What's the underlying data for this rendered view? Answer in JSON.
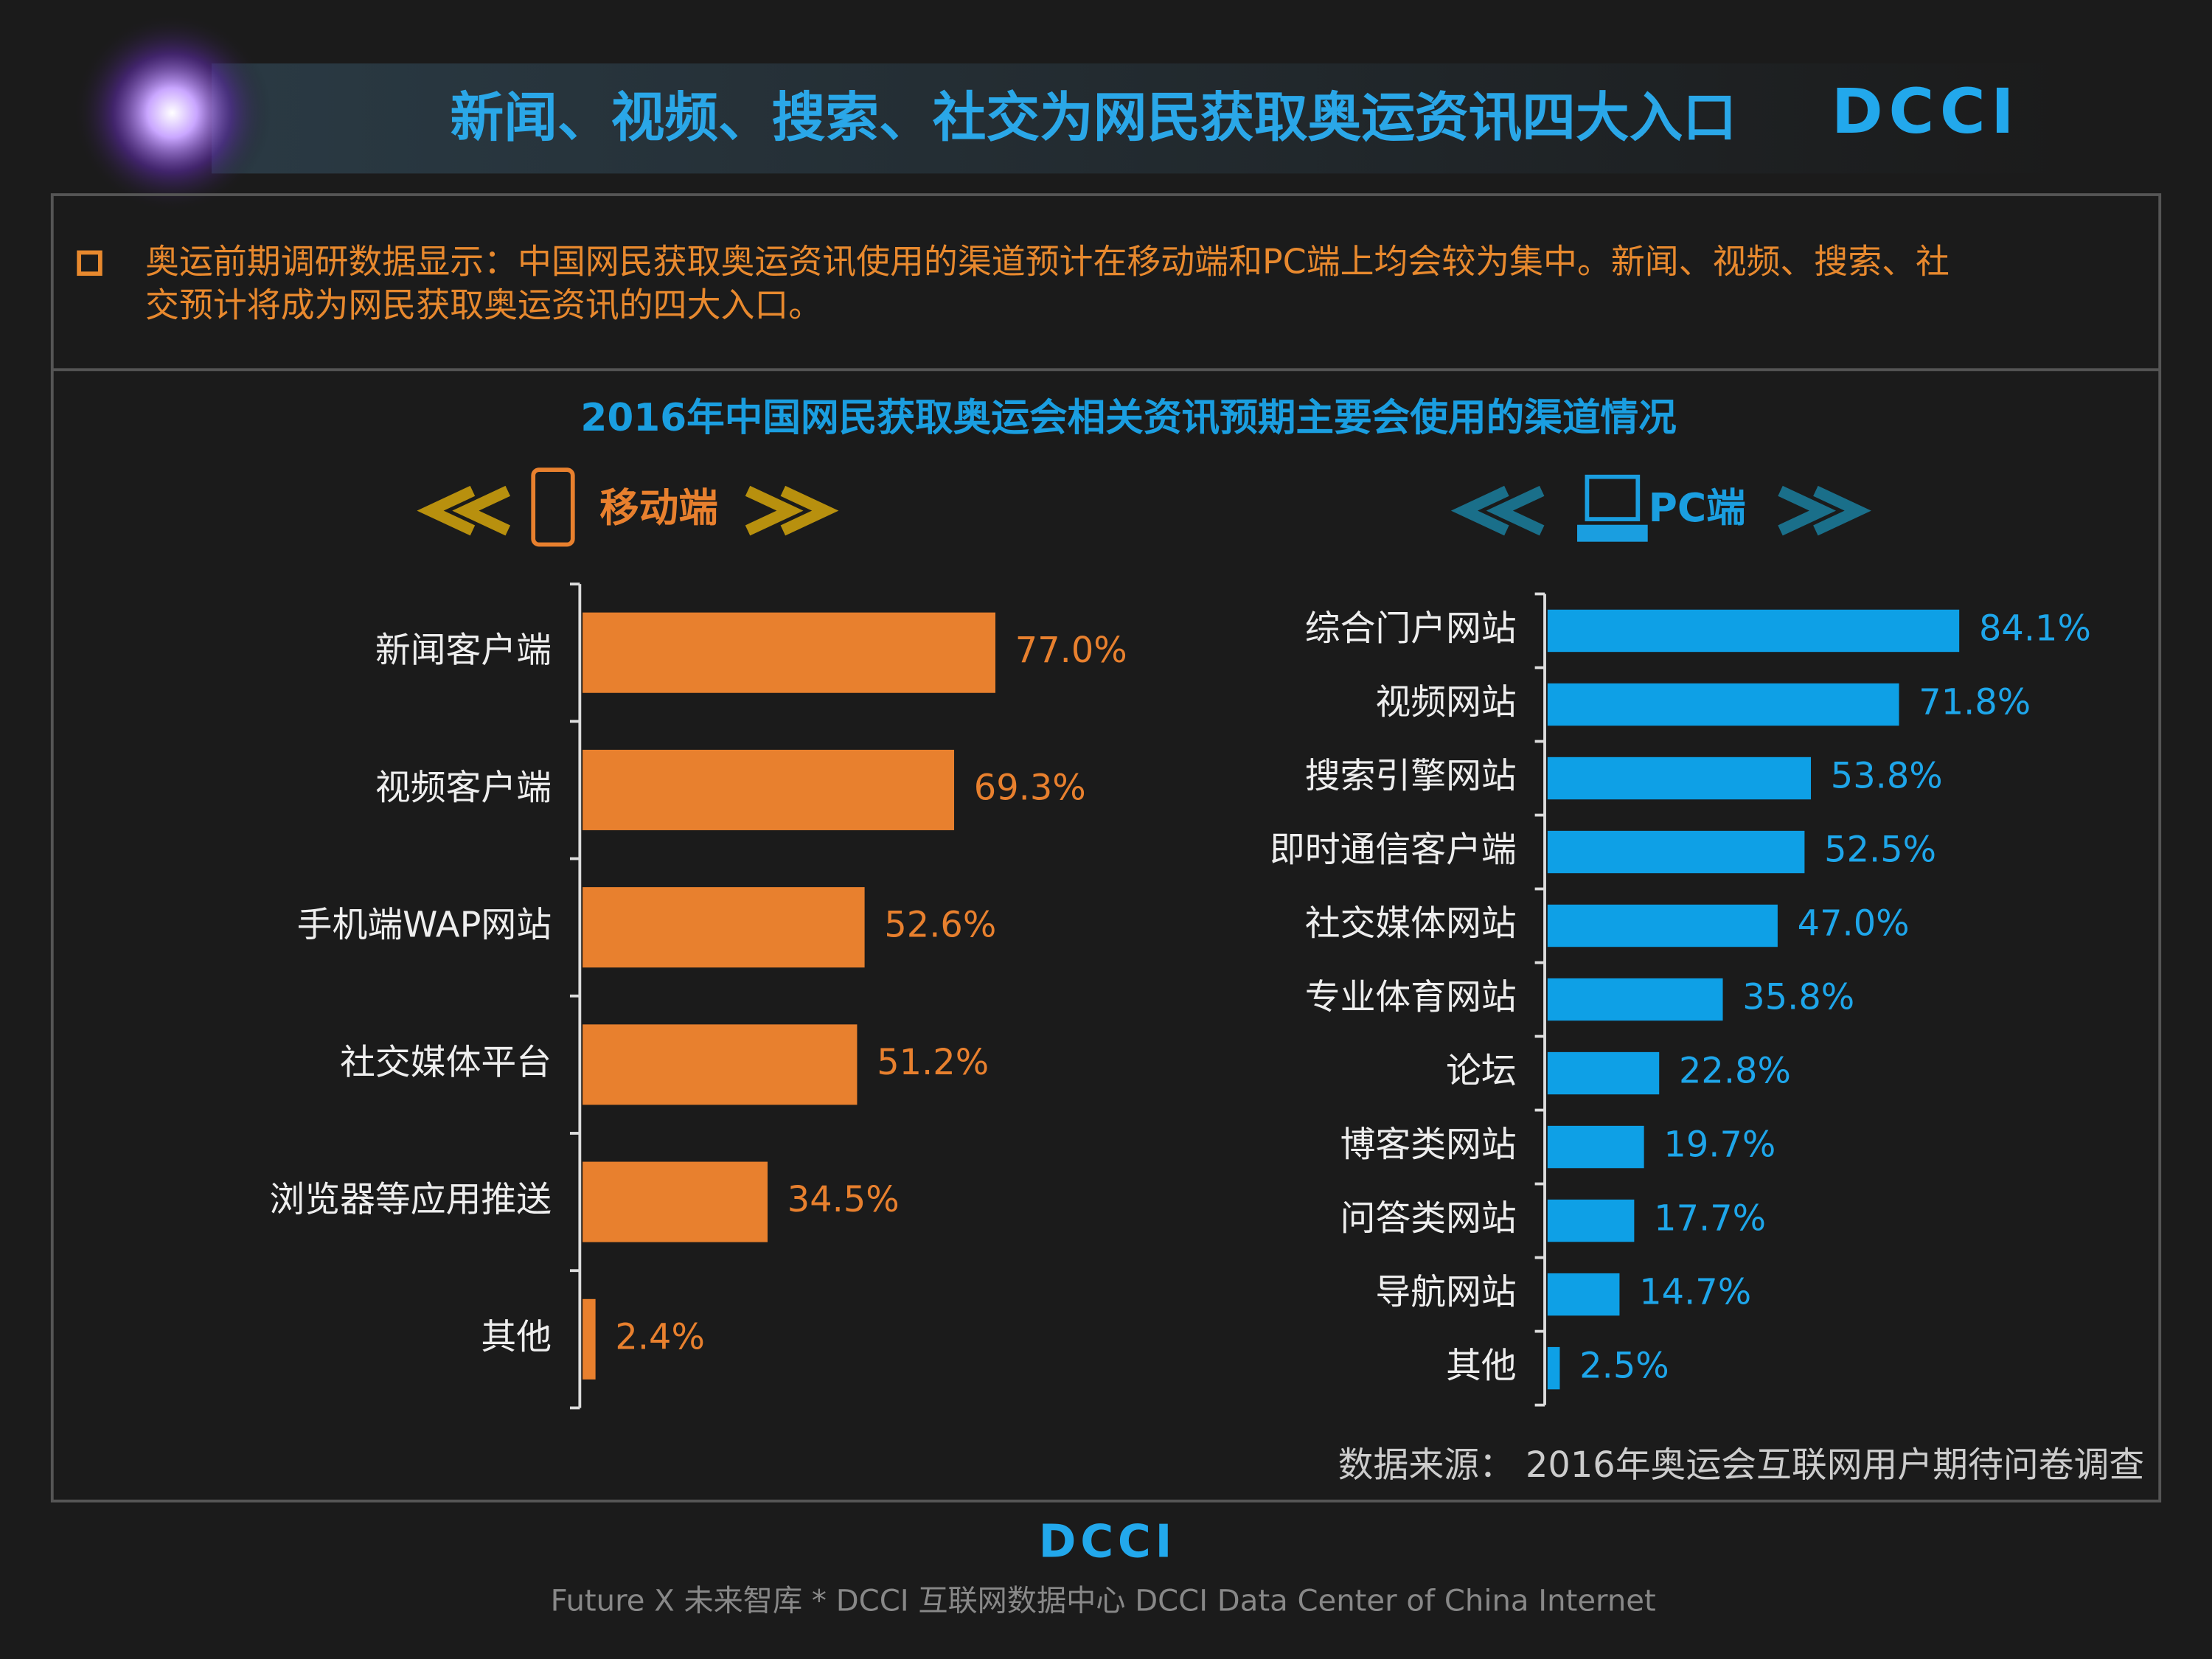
{
  "header": {
    "title": "新闻、视频、搜索、社交为网民获取奥运资讯四大入口",
    "logo": "DCCI"
  },
  "note": [
    "奥运前期调研数据显示：中国网民获取奥运资讯使用的渠道预计在移动端和PC端上均会较为集中。新闻、视频、搜索、社",
    "交预计将成为网民获取奥运资讯的四大入口。"
  ],
  "section_title": "2016年中国网民获取奥运会相关资讯预期主要会使用的渠道情况",
  "chart_data": [
    {
      "type": "bar",
      "orientation": "horizontal",
      "title": "移动端",
      "color": "#e8802e",
      "label_color": "#e8802e",
      "xlim": [
        0,
        100
      ],
      "categories": [
        "新闻客户端",
        "视频客户端",
        "手机端WAP网站",
        "社交媒体平台",
        "浏览器等应用推送",
        "其他"
      ],
      "values": [
        77.0,
        69.3,
        52.6,
        51.2,
        34.5,
        2.4
      ],
      "value_labels": [
        "77.0%",
        "69.3%",
        "52.6%",
        "51.2%",
        "34.5%",
        "2.4%"
      ]
    },
    {
      "type": "bar",
      "orientation": "horizontal",
      "title": "PC端",
      "color": "#0ea0e6",
      "label_color": "#1ea6ea",
      "xlim": [
        0,
        100
      ],
      "categories": [
        "综合门户网站",
        "视频网站",
        "搜索引擎网站",
        "即时通信客户端",
        "社交媒体网站",
        "专业体育网站",
        "论坛",
        "博客类网站",
        "问答类网站",
        "导航网站",
        "其他"
      ],
      "values": [
        84.1,
        71.8,
        53.8,
        52.5,
        47.0,
        35.8,
        22.8,
        19.7,
        17.7,
        14.7,
        2.5
      ],
      "value_labels": [
        "84.1%",
        "71.8%",
        "53.8%",
        "52.5%",
        "47.0%",
        "35.8%",
        "22.8%",
        "19.7%",
        "17.7%",
        "14.7%",
        "2.5%"
      ]
    }
  ],
  "source": "数据来源： 2016年奥运会互联网用户期待问卷调查",
  "footer": {
    "logo": "DCCI",
    "text": "Future X 未来智库 * DCCI 互联网数据中心 DCCI Data Center of China Internet"
  }
}
